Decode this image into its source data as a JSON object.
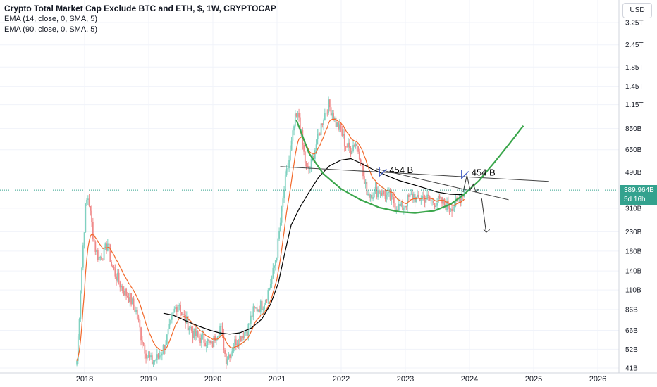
{
  "legend": {
    "title": "Crypto Total Market Cap Exclude BTC and ETH, $, 1W, CRYPTOCAP",
    "indicator_1": "EMA (14, close, 0, SMA, 5)",
    "indicator_2": "EMA (90, close, 0, SMA, 5)"
  },
  "currency": "USD",
  "last_price": {
    "value": "389.964B",
    "countdown": "5d 16h",
    "color": "#33a28e"
  },
  "colors": {
    "up": "#7fd1c0",
    "down": "#f08a8a",
    "ema14": "#f2682a",
    "ema90": "#000000",
    "arc": "#3aa64b",
    "grid": "#f0f3fa"
  },
  "chart_data": {
    "type": "candlestick",
    "title": "Crypto Total Market Cap Exclude BTC and ETH, $, 1W, CRYPTOCAP",
    "y_scale": "log",
    "y_ticks": [
      {
        "label": "3.25T",
        "value": 3250
      },
      {
        "label": "2.45T",
        "value": 2450
      },
      {
        "label": "1.85T",
        "value": 1850
      },
      {
        "label": "1.45T",
        "value": 1450
      },
      {
        "label": "1.15T",
        "value": 1150
      },
      {
        "label": "850B",
        "value": 850
      },
      {
        "label": "650B",
        "value": 650
      },
      {
        "label": "490B",
        "value": 490
      },
      {
        "label": "310B",
        "value": 310
      },
      {
        "label": "230B",
        "value": 230
      },
      {
        "label": "180B",
        "value": 180
      },
      {
        "label": "140B",
        "value": 140
      },
      {
        "label": "110B",
        "value": 110
      },
      {
        "label": "86B",
        "value": 86
      },
      {
        "label": "66B",
        "value": 66
      },
      {
        "label": "52B",
        "value": 52
      },
      {
        "label": "41B",
        "value": 41
      }
    ],
    "x_ticks": [
      "2018",
      "2019",
      "2020",
      "2021",
      "2022",
      "2023",
      "2024",
      "2025",
      "2026"
    ],
    "x_tick_years": [
      2018,
      2019,
      2020,
      2021,
      2022,
      2023,
      2024,
      2025,
      2026
    ],
    "last_value": 389.964,
    "price_path": [
      [
        2017.88,
        45
      ],
      [
        2017.97,
        180
      ],
      [
        2018.02,
        330
      ],
      [
        2018.06,
        360
      ],
      [
        2018.1,
        270
      ],
      [
        2018.16,
        190
      ],
      [
        2018.22,
        165
      ],
      [
        2018.3,
        175
      ],
      [
        2018.36,
        200
      ],
      [
        2018.42,
        150
      ],
      [
        2018.5,
        130
      ],
      [
        2018.6,
        110
      ],
      [
        2018.7,
        100
      ],
      [
        2018.8,
        85
      ],
      [
        2018.88,
        62
      ],
      [
        2018.97,
        48
      ],
      [
        2019.05,
        44
      ],
      [
        2019.15,
        47
      ],
      [
        2019.25,
        55
      ],
      [
        2019.33,
        68
      ],
      [
        2019.4,
        85
      ],
      [
        2019.47,
        95
      ],
      [
        2019.52,
        80
      ],
      [
        2019.6,
        73
      ],
      [
        2019.7,
        63
      ],
      [
        2019.8,
        60
      ],
      [
        2019.9,
        58
      ],
      [
        2019.98,
        54
      ],
      [
        2020.05,
        63
      ],
      [
        2020.12,
        70
      ],
      [
        2020.2,
        46
      ],
      [
        2020.28,
        51
      ],
      [
        2020.36,
        58
      ],
      [
        2020.45,
        62
      ],
      [
        2020.55,
        68
      ],
      [
        2020.62,
        83
      ],
      [
        2020.7,
        88
      ],
      [
        2020.78,
        92
      ],
      [
        2020.86,
        108
      ],
      [
        2020.93,
        132
      ],
      [
        2021.0,
        180
      ],
      [
        2021.06,
        270
      ],
      [
        2021.12,
        420
      ],
      [
        2021.2,
        600
      ],
      [
        2021.28,
        950
      ],
      [
        2021.34,
        1000
      ],
      [
        2021.4,
        680
      ],
      [
        2021.46,
        500
      ],
      [
        2021.52,
        520
      ],
      [
        2021.58,
        640
      ],
      [
        2021.65,
        780
      ],
      [
        2021.72,
        980
      ],
      [
        2021.8,
        1150
      ],
      [
        2021.86,
        1050
      ],
      [
        2021.92,
        900
      ],
      [
        2022.0,
        820
      ],
      [
        2022.06,
        700
      ],
      [
        2022.14,
        650
      ],
      [
        2022.22,
        720
      ],
      [
        2022.3,
        600
      ],
      [
        2022.36,
        420
      ],
      [
        2022.43,
        370
      ],
      [
        2022.5,
        380
      ],
      [
        2022.6,
        390
      ],
      [
        2022.7,
        360
      ],
      [
        2022.78,
        350
      ],
      [
        2022.86,
        320
      ],
      [
        2022.95,
        310
      ],
      [
        2023.05,
        350
      ],
      [
        2023.12,
        370
      ],
      [
        2023.18,
        340
      ],
      [
        2023.26,
        360
      ],
      [
        2023.34,
        350
      ],
      [
        2023.42,
        335
      ],
      [
        2023.5,
        340
      ],
      [
        2023.58,
        330
      ],
      [
        2023.66,
        318
      ],
      [
        2023.74,
        322
      ],
      [
        2023.8,
        330
      ],
      [
        2023.86,
        360
      ],
      [
        2023.92,
        390
      ]
    ],
    "ema90_path": [
      [
        2019.23,
        82
      ],
      [
        2019.38,
        80
      ],
      [
        2019.56,
        75
      ],
      [
        2019.76,
        70
      ],
      [
        2019.96,
        66
      ],
      [
        2020.1,
        64
      ],
      [
        2020.26,
        63
      ],
      [
        2020.42,
        64
      ],
      [
        2020.6,
        68
      ],
      [
        2020.76,
        76
      ],
      [
        2020.9,
        92
      ],
      [
        2021.02,
        120
      ],
      [
        2021.12,
        175
      ],
      [
        2021.22,
        250
      ],
      [
        2021.35,
        310
      ],
      [
        2021.5,
        380
      ],
      [
        2021.65,
        460
      ],
      [
        2021.82,
        530
      ],
      [
        2022.0,
        570
      ],
      [
        2022.15,
        580
      ],
      [
        2022.32,
        545
      ],
      [
        2022.5,
        505
      ],
      [
        2022.7,
        470
      ],
      [
        2022.9,
        440
      ],
      [
        2023.1,
        420
      ],
      [
        2023.3,
        400
      ],
      [
        2023.5,
        380
      ],
      [
        2023.7,
        370
      ],
      [
        2023.92,
        367
      ]
    ],
    "arc_path": [
      [
        2021.3,
        950
      ],
      [
        2021.5,
        620
      ],
      [
        2021.72,
        480
      ],
      [
        2022.0,
        395
      ],
      [
        2022.3,
        345
      ],
      [
        2022.6,
        312
      ],
      [
        2022.9,
        296
      ],
      [
        2023.15,
        292
      ],
      [
        2023.45,
        300
      ],
      [
        2023.7,
        325
      ],
      [
        2023.92,
        370
      ],
      [
        2024.15,
        440
      ],
      [
        2024.4,
        560
      ],
      [
        2024.62,
        700
      ],
      [
        2024.84,
        880
      ]
    ],
    "trend_lines": [
      [
        [
          2021.05,
          525
        ],
        [
          2025.24,
          435
        ]
      ],
      [
        [
          2022.55,
          510
        ],
        [
          2024.61,
          345
        ]
      ]
    ],
    "projection_arrow": [
      [
        2024.19,
        350
      ],
      [
        2024.26,
        228
      ]
    ],
    "annotations": [
      {
        "text": "454 B",
        "x": 2022.75,
        "y": 500
      },
      {
        "text": "454 B",
        "x": 2024.03,
        "y": 485
      }
    ]
  }
}
